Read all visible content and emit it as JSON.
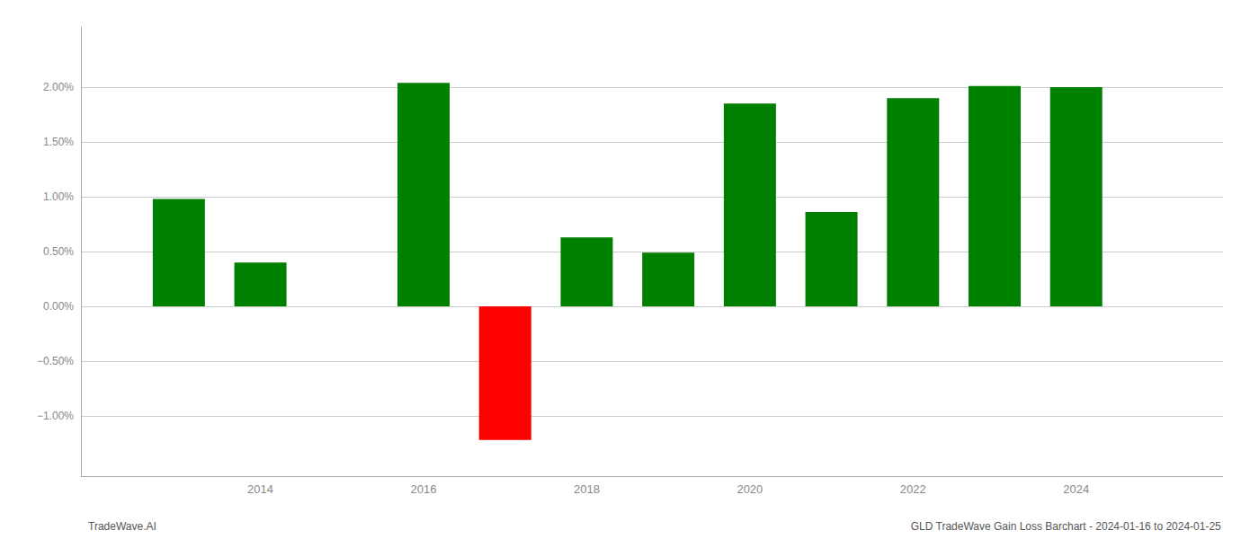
{
  "chart_data": {
    "type": "bar",
    "x": [
      2013,
      2014,
      2016,
      2017,
      2018,
      2019,
      2020,
      2021,
      2022,
      2023,
      2024
    ],
    "values": [
      0.0098,
      0.004,
      0.0204,
      -0.0122,
      0.0063,
      0.0049,
      0.0185,
      0.0086,
      0.019,
      0.0201,
      0.02
    ],
    "colors": [
      "#008000",
      "#008000",
      "#008000",
      "#ff0000",
      "#008000",
      "#008000",
      "#008000",
      "#008000",
      "#008000",
      "#008000",
      "#008000"
    ],
    "xlim": [
      2011.8,
      2025.8
    ],
    "xticks": [
      2014,
      2016,
      2018,
      2020,
      2022,
      2024
    ],
    "ylim": [
      -0.0155,
      0.0255
    ],
    "yticks": [
      {
        "value": -0.01,
        "label": "−1.00%"
      },
      {
        "value": -0.005,
        "label": "−0.50%"
      },
      {
        "value": 0.0,
        "label": "0.00%"
      },
      {
        "value": 0.005,
        "label": "0.50%"
      },
      {
        "value": 0.01,
        "label": "1.00%"
      },
      {
        "value": 0.015,
        "label": "1.50%"
      },
      {
        "value": 0.02,
        "label": "2.00%"
      }
    ],
    "grid": true,
    "annotations": [
      "TradeWave.AI",
      "GLD TradeWave Gain Loss Barchart - 2024-01-16 to 2024-01-25"
    ]
  }
}
